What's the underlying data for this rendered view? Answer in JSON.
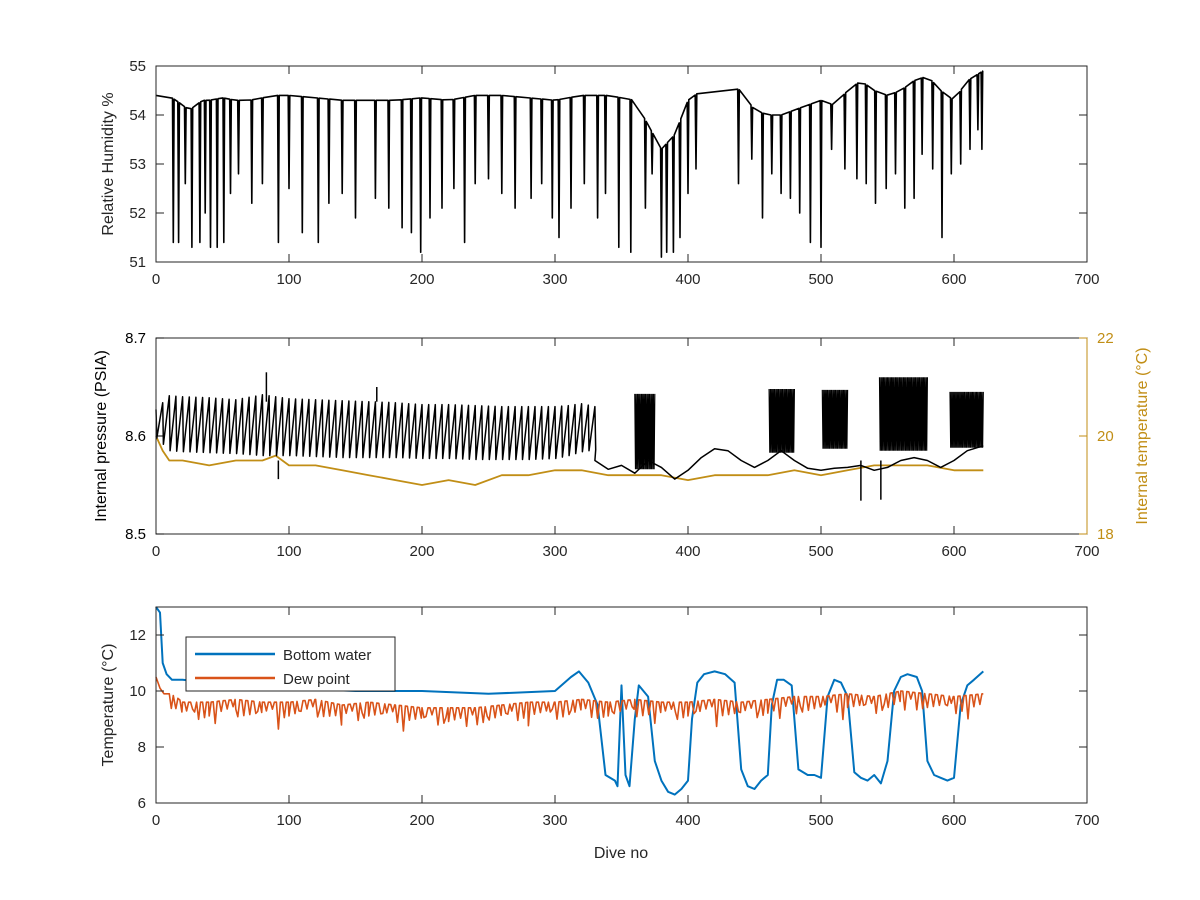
{
  "chart_data": [
    {
      "type": "line",
      "xlabel": "",
      "ylabel": "Relative Humidity %",
      "xlim": [
        0,
        700
      ],
      "ylim": [
        51,
        55
      ],
      "xticks": [
        0,
        100,
        200,
        300,
        400,
        500,
        600,
        700
      ],
      "yticks": [
        51,
        52,
        53,
        54,
        55
      ],
      "series": [
        {
          "color": "#000000",
          "x": [
            0,
            5,
            10,
            12,
            15,
            20,
            25,
            30,
            35,
            40,
            50,
            60,
            70,
            80,
            90,
            100,
            120,
            140,
            160,
            180,
            200,
            220,
            240,
            260,
            280,
            300,
            320,
            340,
            360,
            370,
            380,
            390,
            400,
            410,
            420,
            430,
            440,
            450,
            460,
            470,
            480,
            490,
            500,
            510,
            520,
            530,
            540,
            550,
            560,
            570,
            580,
            590,
            600,
            610,
            622
          ],
          "y": [
            54.4,
            54.5,
            54.3,
            54.35,
            54.3,
            54.2,
            54.1,
            54.2,
            54.3,
            54.3,
            54.35,
            54.3,
            54.3,
            54.35,
            54.4,
            54.4,
            54.35,
            54.3,
            54.3,
            54.3,
            54.35,
            54.3,
            54.4,
            54.4,
            54.35,
            54.3,
            54.4,
            54.4,
            54.3,
            53.8,
            53.3,
            53.6,
            54.3,
            54.5,
            54.6,
            54.6,
            54.5,
            54.1,
            54.0,
            54.0,
            54.1,
            54.2,
            54.3,
            54.2,
            54.5,
            54.7,
            54.5,
            54.4,
            54.5,
            54.7,
            54.8,
            54.5,
            54.3,
            54.7,
            54.9
          ]
        }
      ],
      "dips": [
        [
          13,
          51.4
        ],
        [
          17,
          51.4
        ],
        [
          22,
          52.6
        ],
        [
          27,
          51.3
        ],
        [
          33,
          51.4
        ],
        [
          37,
          52.0
        ],
        [
          41,
          51.3
        ],
        [
          46,
          51.3
        ],
        [
          51,
          51.4
        ],
        [
          56,
          52.4
        ],
        [
          62,
          52.8
        ],
        [
          72,
          52.2
        ],
        [
          80,
          52.6
        ],
        [
          92,
          51.4
        ],
        [
          100,
          52.5
        ],
        [
          110,
          51.6
        ],
        [
          122,
          51.4
        ],
        [
          130,
          52.2
        ],
        [
          140,
          52.4
        ],
        [
          150,
          51.9
        ],
        [
          165,
          52.3
        ],
        [
          175,
          52.1
        ],
        [
          185,
          51.7
        ],
        [
          192,
          51.6
        ],
        [
          199,
          51.2
        ],
        [
          206,
          51.9
        ],
        [
          215,
          52.1
        ],
        [
          224,
          52.5
        ],
        [
          232,
          51.4
        ],
        [
          240,
          52.6
        ],
        [
          250,
          52.7
        ],
        [
          260,
          52.4
        ],
        [
          270,
          52.1
        ],
        [
          282,
          52.3
        ],
        [
          290,
          52.6
        ],
        [
          298,
          51.9
        ],
        [
          303,
          51.5
        ],
        [
          312,
          52.1
        ],
        [
          322,
          52.6
        ],
        [
          332,
          51.9
        ],
        [
          338,
          52.4
        ],
        [
          348,
          51.3
        ],
        [
          357,
          51.2
        ],
        [
          368,
          52.1
        ],
        [
          373,
          52.8
        ],
        [
          380,
          51.1
        ],
        [
          384,
          51.2
        ],
        [
          389,
          51.2
        ],
        [
          394,
          51.5
        ],
        [
          400,
          52.4
        ],
        [
          406,
          52.9
        ],
        [
          438,
          52.6
        ],
        [
          448,
          53.1
        ],
        [
          456,
          51.9
        ],
        [
          463,
          52.8
        ],
        [
          470,
          52.4
        ],
        [
          477,
          52.3
        ],
        [
          484,
          52.0
        ],
        [
          492,
          51.4
        ],
        [
          500,
          51.3
        ],
        [
          508,
          53.3
        ],
        [
          518,
          52.9
        ],
        [
          527,
          52.7
        ],
        [
          534,
          52.6
        ],
        [
          541,
          52.2
        ],
        [
          549,
          52.5
        ],
        [
          556,
          52.8
        ],
        [
          563,
          52.1
        ],
        [
          570,
          52.3
        ],
        [
          576,
          53.2
        ],
        [
          584,
          52.9
        ],
        [
          591,
          51.5
        ],
        [
          598,
          52.8
        ],
        [
          605,
          53.0
        ],
        [
          612,
          53.3
        ],
        [
          618,
          53.7
        ],
        [
          621,
          53.3
        ]
      ]
    },
    {
      "type": "line",
      "xlabel": "",
      "ylabel": "Internal pressure (PSIA)",
      "ylabel_right": "Internal temperature (°C)",
      "xlim": [
        0,
        700
      ],
      "ylim": [
        8.5,
        8.7
      ],
      "ylim_right": [
        18,
        22
      ],
      "xticks": [
        0,
        100,
        200,
        300,
        400,
        500,
        600,
        700
      ],
      "yticks": [
        8.5,
        8.6,
        8.7
      ],
      "yticks_right": [
        18,
        20,
        22
      ],
      "colors": {
        "pressure": "#000000",
        "temperature": "#c18e16"
      },
      "pressure_envelope": {
        "x": [
          0,
          10,
          20,
          40,
          60,
          80,
          100,
          120,
          140,
          160,
          180,
          200,
          220,
          240,
          260,
          280,
          300,
          310,
          320,
          330
        ],
        "high": [
          8.627,
          8.641,
          8.64,
          8.639,
          8.637,
          8.642,
          8.638,
          8.637,
          8.636,
          8.635,
          8.634,
          8.632,
          8.632,
          8.631,
          8.63,
          8.63,
          8.63,
          8.631,
          8.633,
          8.63
        ],
        "low": [
          8.598,
          8.585,
          8.584,
          8.583,
          8.582,
          8.58,
          8.58,
          8.579,
          8.578,
          8.578,
          8.578,
          8.577,
          8.577,
          8.576,
          8.576,
          8.576,
          8.577,
          8.58,
          8.584,
          8.586
        ]
      },
      "pressure_spikes": [
        [
          83,
          8.665
        ],
        [
          92,
          8.556
        ],
        [
          166,
          8.65
        ],
        [
          530,
          8.534
        ],
        [
          545,
          8.535
        ]
      ],
      "pressure_baseline": {
        "x": [
          330,
          340,
          350,
          360,
          370,
          380,
          390,
          400,
          410,
          420,
          430,
          440,
          450,
          460,
          470,
          480,
          490,
          500,
          510,
          520,
          530,
          540,
          550,
          560,
          570,
          580,
          590,
          600,
          610,
          622
        ],
        "y": [
          8.575,
          8.566,
          8.57,
          8.562,
          8.575,
          8.568,
          8.556,
          8.565,
          8.578,
          8.587,
          8.585,
          8.575,
          8.568,
          8.575,
          8.585,
          8.575,
          8.567,
          8.565,
          8.567,
          8.568,
          8.57,
          8.565,
          8.568,
          8.575,
          8.578,
          8.575,
          8.568,
          8.575,
          8.585,
          8.59
        ]
      },
      "pressure_bursts": [
        {
          "x": [
            360,
            375
          ],
          "high": 8.643,
          "low": 8.566
        },
        {
          "x": [
            461,
            480
          ],
          "high": 8.648,
          "low": 8.583
        },
        {
          "x": [
            501,
            520
          ],
          "high": 8.647,
          "low": 8.587
        },
        {
          "x": [
            544,
            580
          ],
          "high": 8.66,
          "low": 8.585
        },
        {
          "x": [
            597,
            622
          ],
          "high": 8.645,
          "low": 8.588
        }
      ],
      "temperature": {
        "x": [
          0,
          5,
          10,
          20,
          40,
          60,
          80,
          90,
          100,
          120,
          140,
          160,
          180,
          200,
          220,
          240,
          260,
          280,
          300,
          320,
          340,
          360,
          380,
          400,
          420,
          440,
          460,
          480,
          500,
          520,
          540,
          560,
          580,
          600,
          622
        ],
        "y": [
          20.0,
          19.7,
          19.5,
          19.5,
          19.4,
          19.5,
          19.5,
          19.6,
          19.4,
          19.4,
          19.3,
          19.2,
          19.1,
          19.0,
          19.1,
          19.0,
          19.2,
          19.2,
          19.3,
          19.3,
          19.2,
          19.2,
          19.2,
          19.1,
          19.2,
          19.2,
          19.2,
          19.3,
          19.2,
          19.3,
          19.4,
          19.4,
          19.4,
          19.3,
          19.3
        ]
      }
    },
    {
      "type": "line",
      "xlabel": "Dive no",
      "ylabel": "Temperature (°C)",
      "xlim": [
        0,
        700
      ],
      "ylim": [
        6,
        13
      ],
      "xticks": [
        0,
        100,
        200,
        300,
        400,
        500,
        600,
        700
      ],
      "yticks": [
        6,
        8,
        10,
        12
      ],
      "legend": {
        "placement": "top-left"
      },
      "series": [
        {
          "name": "Bottom water",
          "color": "#0072bd",
          "x": [
            0,
            3,
            5,
            8,
            12,
            20,
            40,
            60,
            100,
            150,
            200,
            250,
            300,
            312,
            318,
            325,
            332,
            338,
            345,
            347,
            350,
            353,
            356,
            360,
            363,
            370,
            375,
            380,
            385,
            390,
            395,
            400,
            403,
            407,
            412,
            420,
            428,
            435,
            440,
            445,
            450,
            455,
            460,
            463,
            467,
            472,
            478,
            483,
            490,
            495,
            500,
            505,
            510,
            515,
            520,
            525,
            530,
            535,
            540,
            545,
            550,
            555,
            560,
            565,
            572,
            576,
            580,
            585,
            590,
            595,
            600,
            605,
            610,
            615,
            622
          ],
          "y": [
            13.0,
            12.8,
            11.0,
            10.6,
            10.4,
            10.4,
            10.3,
            10.2,
            10.1,
            10.0,
            10.0,
            9.9,
            10.0,
            10.5,
            10.7,
            10.3,
            9.5,
            7.0,
            6.8,
            6.6,
            10.2,
            7.0,
            6.6,
            9.0,
            10.2,
            9.8,
            7.5,
            6.8,
            6.4,
            6.3,
            6.5,
            6.8,
            9.0,
            10.3,
            10.6,
            10.7,
            10.6,
            10.3,
            7.2,
            6.6,
            6.5,
            6.8,
            7.0,
            9.5,
            10.4,
            10.4,
            10.2,
            7.2,
            7.0,
            7.0,
            6.9,
            9.8,
            10.4,
            10.3,
            9.8,
            7.1,
            6.9,
            6.8,
            7.0,
            6.7,
            7.5,
            10.0,
            10.5,
            10.6,
            10.5,
            10.0,
            7.5,
            7.0,
            6.9,
            6.8,
            6.9,
            9.5,
            10.2,
            10.4,
            10.7
          ]
        },
        {
          "name": "Dew point",
          "color": "#d95319",
          "x": [
            0,
            3,
            6,
            10,
            15,
            20,
            40,
            60,
            80,
            100,
            120,
            140,
            160,
            180,
            200,
            220,
            240,
            260,
            280,
            300,
            320,
            340,
            360,
            380,
            400,
            420,
            440,
            460,
            480,
            500,
            520,
            540,
            560,
            580,
            600,
            622
          ],
          "y": [
            10.5,
            10.1,
            9.9,
            9.9,
            9.8,
            9.6,
            9.6,
            9.7,
            9.6,
            9.6,
            9.7,
            9.5,
            9.6,
            9.5,
            9.4,
            9.4,
            9.4,
            9.5,
            9.6,
            9.6,
            9.7,
            9.6,
            9.7,
            9.6,
            9.6,
            9.7,
            9.6,
            9.7,
            9.8,
            9.8,
            9.9,
            9.8,
            10.0,
            9.9,
            9.8,
            9.9
          ]
        }
      ]
    }
  ]
}
